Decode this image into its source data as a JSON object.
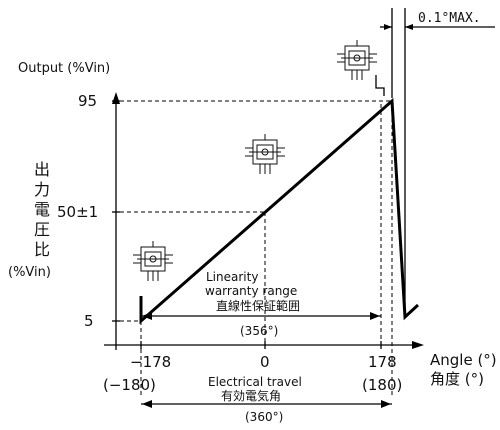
{
  "max_note": "0.1°MAX.",
  "y_axis": {
    "title": "Output (%Vin)",
    "title_jp": [
      "出",
      "力",
      "電",
      "圧",
      "比"
    ],
    "unit_jp": "(%Vin)",
    "ticks": {
      "top": "95",
      "mid": "50±1",
      "bottom": "5"
    }
  },
  "x_axis": {
    "title": "Angle (°)",
    "title_jp": "角度 (°)",
    "ticks": {
      "left": "−178",
      "center": "0",
      "right": "178"
    },
    "ticks_paren": {
      "left": "(−180)",
      "right": "(180)"
    }
  },
  "linearity": {
    "label_line1": "Linearity",
    "label_line2": "warranty range",
    "label_jp": "直線性保証範囲",
    "value": "(356°)"
  },
  "electrical": {
    "label": "Electrical travel",
    "label_jp": "有効電気角",
    "value": "(360°)"
  },
  "chart_data": {
    "type": "line",
    "x": [
      -180,
      -180,
      -178,
      178,
      180,
      180,
      180.1
    ],
    "y": [
      0,
      5,
      5,
      95,
      95,
      0,
      5
    ],
    "xlim": [
      -180,
      180
    ],
    "ylim": [
      0,
      100
    ]
  }
}
